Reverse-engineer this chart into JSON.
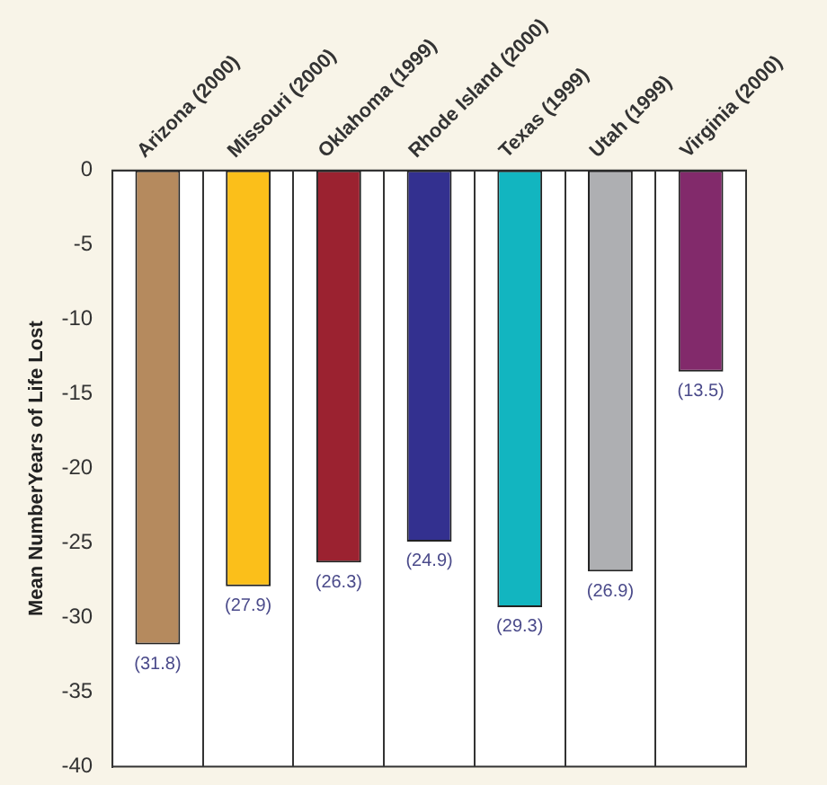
{
  "chart_data": {
    "type": "bar",
    "ylabel": "Mean NumberYears of Life Lost",
    "categories": [
      "Arizona (2000)",
      "Missouri (2000)",
      "Oklahoma (1999)",
      "Rhode Island (2000)",
      "Texas (1999)",
      "Utah (1999)",
      "Virginia (2000)"
    ],
    "values": [
      -31.8,
      -27.9,
      -26.3,
      -24.9,
      -29.3,
      -26.9,
      -13.5
    ],
    "value_labels": [
      "(31.8)",
      "(27.9)",
      "(26.3)",
      "(24.9)",
      "(29.3)",
      "(26.9)",
      "(13.5)"
    ],
    "colors": [
      "#b58a5e",
      "#fbbf1a",
      "#9b2230",
      "#33308f",
      "#12b5c0",
      "#aeafb2",
      "#822a6b"
    ],
    "ylim": [
      -40,
      0
    ],
    "yticks": [
      0,
      -5,
      -10,
      -15,
      -20,
      -25,
      -30,
      -35,
      -40
    ],
    "grid": "x",
    "legend": false
  }
}
